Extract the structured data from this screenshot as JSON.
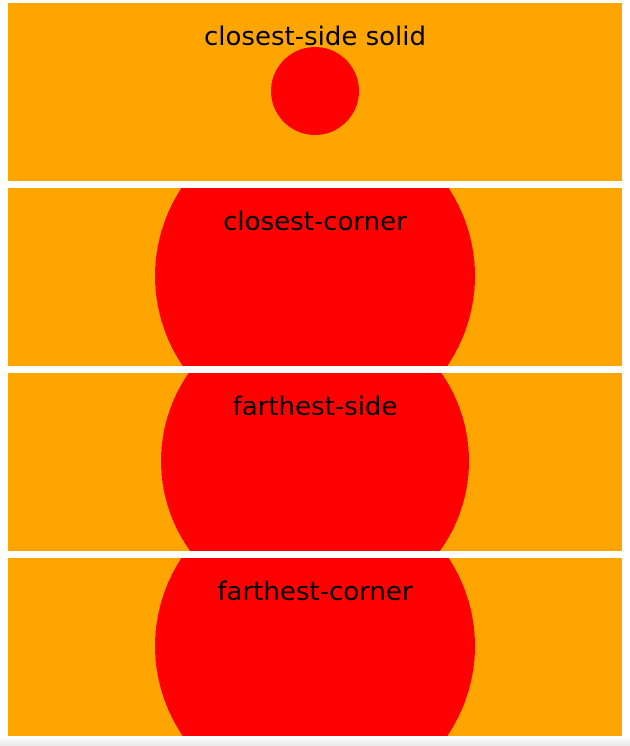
{
  "colors": {
    "background": "#FFA500",
    "circle": "#FF0000",
    "text": "#000000",
    "page": "#FFFFFF"
  },
  "panels": [
    {
      "label": "closest-side solid"
    },
    {
      "label": "closest-corner"
    },
    {
      "label": "farthest-side"
    },
    {
      "label": "farthest-corner"
    }
  ]
}
